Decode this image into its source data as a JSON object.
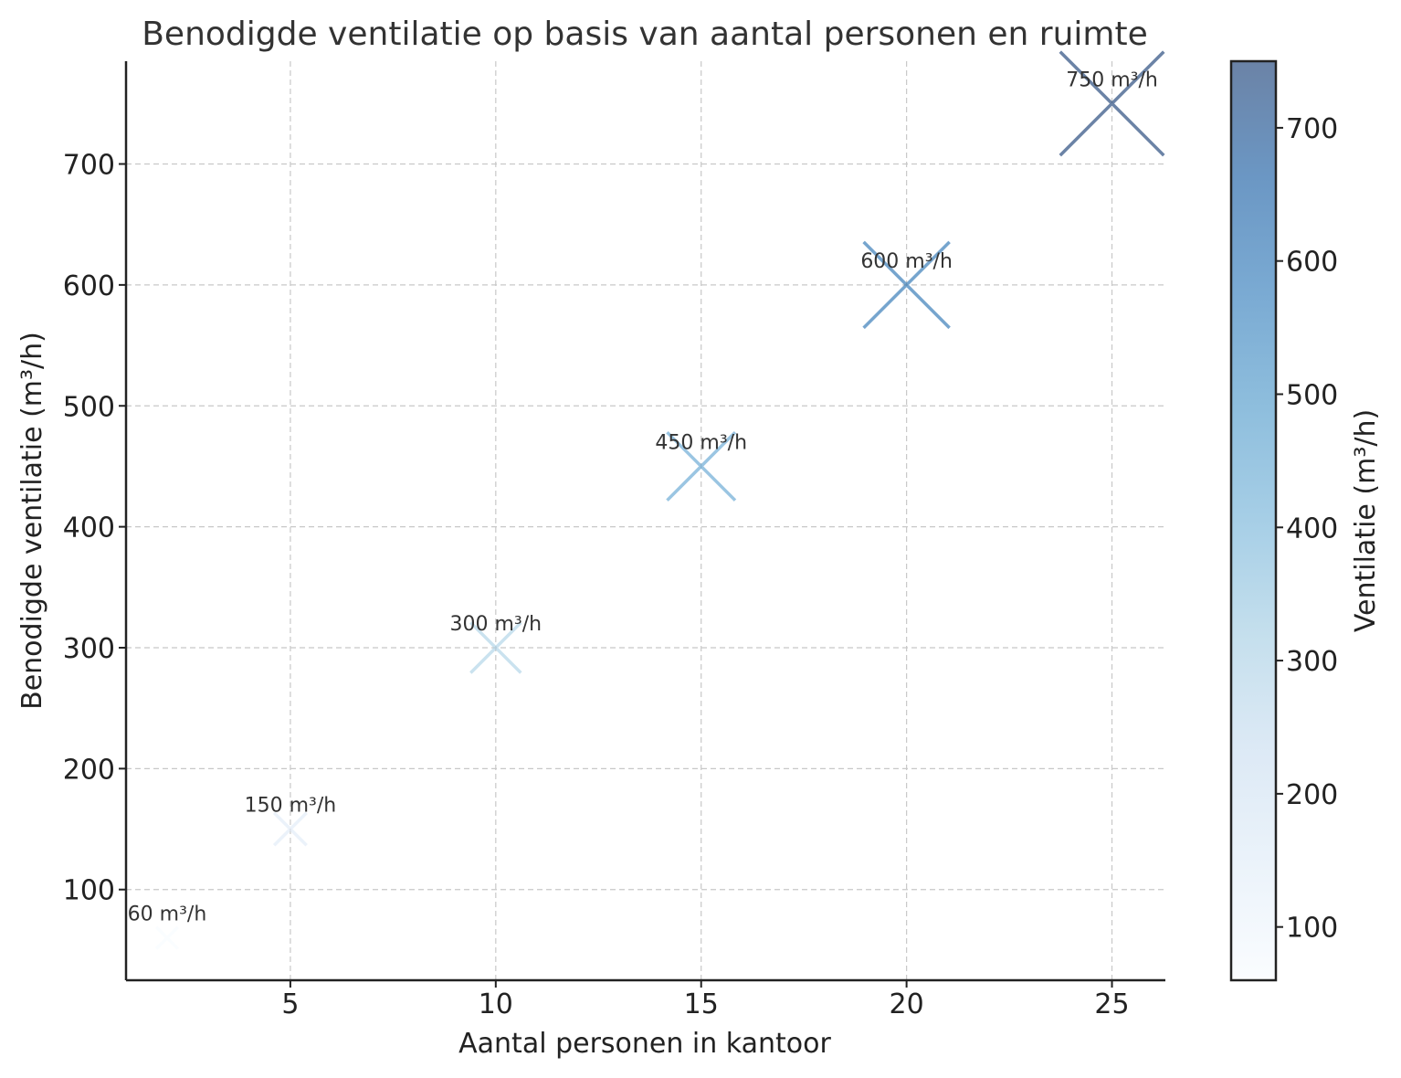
{
  "chart_data": {
    "type": "scatter",
    "title": "Benodigde ventilatie op basis van aantal personen en ruimte",
    "xlabel": "Aantal personen in kantoor",
    "ylabel": "Benodigde ventilatie (m³/h)",
    "xlim": [
      1,
      26.3
    ],
    "ylim": [
      25,
      785
    ],
    "xticks": [
      5,
      10,
      15,
      20,
      25
    ],
    "yticks": [
      100,
      200,
      300,
      400,
      500,
      600,
      700
    ],
    "grid": true,
    "marker": "x",
    "colormap": "Blues",
    "colormap_colors": [
      "#f7fbff",
      "#deebf7",
      "#c6dbef",
      "#9ecae1",
      "#6baed6",
      "#4292c6",
      "#2171b5",
      "#08519c",
      "#08306b"
    ],
    "marker_alpha": 0.6,
    "points": [
      {
        "x": 2,
        "y": 60,
        "label": "60 m³/h"
      },
      {
        "x": 5,
        "y": 150,
        "label": "150 m³/h"
      },
      {
        "x": 10,
        "y": 300,
        "label": "300 m³/h"
      },
      {
        "x": 15,
        "y": 450,
        "label": "450 m³/h"
      },
      {
        "x": 20,
        "y": 600,
        "label": "600 m³/h"
      },
      {
        "x": 25,
        "y": 750,
        "label": "750 m³/h"
      }
    ],
    "colorbar": {
      "label": "Ventilatie (m³/h)",
      "range": [
        60,
        750
      ],
      "ticks": [
        100,
        200,
        300,
        400,
        500,
        600,
        700
      ]
    }
  }
}
